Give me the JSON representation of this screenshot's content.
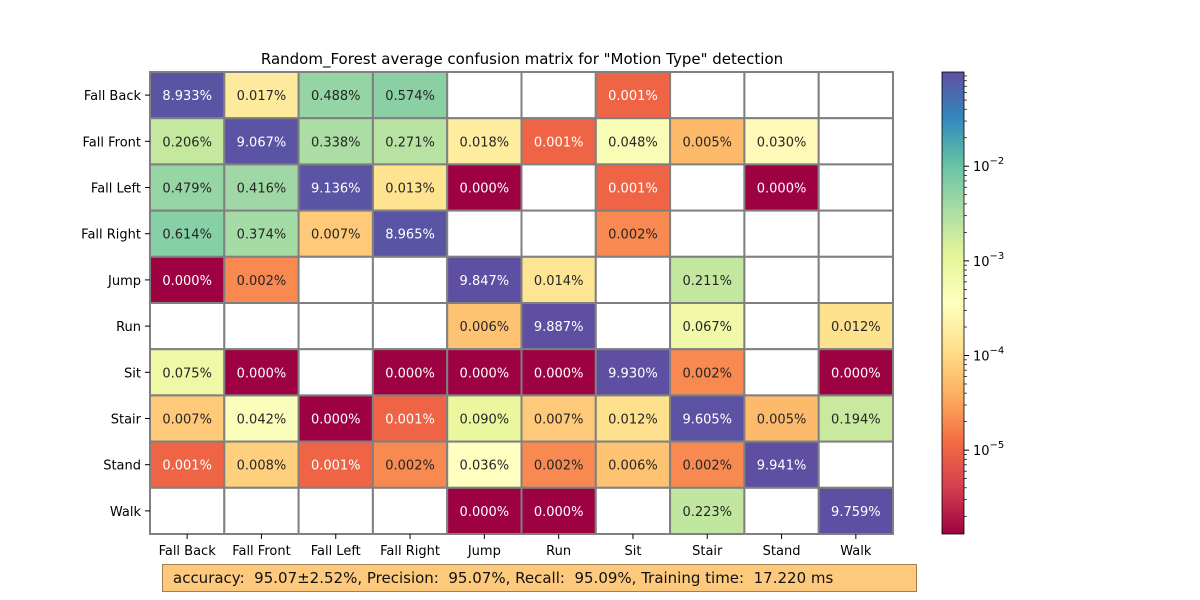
{
  "chart_data": {
    "type": "heatmap",
    "title": "Random_Forest average confusion matrix for \"Motion Type\" detection",
    "row_labels": [
      "Fall Back",
      "Fall Front",
      "Fall Left",
      "Fall Right",
      "Jump",
      "Run",
      "Sit",
      "Stair",
      "Stand",
      "Walk"
    ],
    "col_labels": [
      "Fall Back",
      "Fall Front",
      "Fall Left",
      "Fall Right",
      "Jump",
      "Run",
      "Sit",
      "Stair",
      "Stand",
      "Walk"
    ],
    "cells": [
      [
        "8.933%",
        "0.017%",
        "0.488%",
        "0.574%",
        null,
        null,
        "0.001%",
        null,
        null,
        null
      ],
      [
        "0.206%",
        "9.067%",
        "0.338%",
        "0.271%",
        "0.018%",
        "0.001%",
        "0.048%",
        "0.005%",
        "0.030%",
        null
      ],
      [
        "0.479%",
        "0.416%",
        "9.136%",
        "0.013%",
        "0.000%",
        null,
        "0.001%",
        null,
        "0.000%",
        null
      ],
      [
        "0.614%",
        "0.374%",
        "0.007%",
        "8.965%",
        null,
        null,
        "0.002%",
        null,
        null,
        null
      ],
      [
        "0.000%",
        "0.002%",
        null,
        null,
        "9.847%",
        "0.014%",
        null,
        "0.211%",
        null,
        null
      ],
      [
        null,
        null,
        null,
        null,
        "0.006%",
        "9.887%",
        null,
        "0.067%",
        null,
        "0.012%"
      ],
      [
        "0.075%",
        "0.000%",
        null,
        "0.000%",
        "0.000%",
        "0.000%",
        "9.930%",
        "0.002%",
        null,
        "0.000%"
      ],
      [
        "0.007%",
        "0.042%",
        "0.000%",
        "0.001%",
        "0.090%",
        "0.007%",
        "0.012%",
        "9.605%",
        "0.005%",
        "0.194%"
      ],
      [
        "0.001%",
        "0.008%",
        "0.001%",
        "0.002%",
        "0.036%",
        "0.002%",
        "0.006%",
        "0.002%",
        "9.941%",
        null
      ],
      [
        null,
        null,
        null,
        null,
        "0.000%",
        "0.000%",
        null,
        "0.223%",
        null,
        "9.759%"
      ]
    ],
    "colorbar": {
      "scale": "log",
      "colormap": "Spectral",
      "min": 1.3e-06,
      "max": 0.099,
      "ticks": [
        {
          "value": 0.01,
          "base": "10",
          "exp": "−2"
        },
        {
          "value": 0.001,
          "base": "10",
          "exp": "−3"
        },
        {
          "value": 0.0001,
          "base": "10",
          "exp": "−4"
        },
        {
          "value": 1e-05,
          "base": "10",
          "exp": "−5"
        }
      ]
    }
  },
  "metrics_text": "accuracy:  95.07±2.52%, Precision:  95.07%, Recall:  95.09%, Training time:  17.220 ms"
}
